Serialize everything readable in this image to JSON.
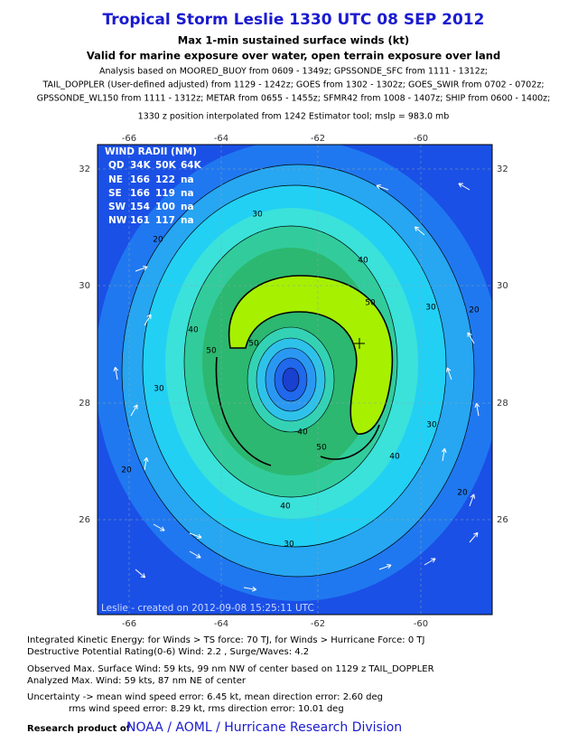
{
  "header": {
    "title": "Tropical Storm Leslie 1330 UTC 08 SEP 2012",
    "subtitle": "Max 1-min sustained surface winds (kt)",
    "subtitle2": "Valid for marine exposure over water, open terrain exposure over land",
    "analysis": [
      "Analysis based on MOORED_BUOY from 0609 - 1349z; GPSSONDE_SFC from 1111 - 1312z;",
      "TAIL_DOPPLER (User-defined adjusted) from 1129 - 1242z; GOES from 1302 - 1302z; GOES_SWIR from 0702 - 0702z;",
      "GPSSONDE_WL150 from 1111 - 1312z; METAR from 0655 - 1455z; SFMR42 from 1008 - 1407z; SHIP from 0600 - 1400z;"
    ],
    "position": "1330 z position interpolated from 1242 Estimator tool; mslp = 983.0 mb"
  },
  "axes": {
    "lon_labels": [
      "-66",
      "-64",
      "-62",
      "-60"
    ],
    "lat_labels": [
      "32",
      "30",
      "28",
      "26"
    ]
  },
  "wind_radii": {
    "title": "WIND RADII (NM)",
    "header": [
      "QD",
      "34K",
      "50K",
      "64K"
    ],
    "rows": [
      [
        "NE",
        "166",
        "122",
        "na"
      ],
      [
        "SE",
        "166",
        "119",
        "na"
      ],
      [
        "SW",
        "154",
        "100",
        "na"
      ],
      [
        "NW",
        "161",
        "117",
        "na"
      ]
    ]
  },
  "contour_labels": [
    "20",
    "30",
    "40",
    "50",
    "30",
    "20",
    "40",
    "50",
    "30",
    "20",
    "40",
    "30",
    "50",
    "40",
    "50",
    "40",
    "20",
    "30"
  ],
  "credit_line": "Leslie - created on 2012-09-08 15:25:11 UTC",
  "footer": {
    "lines": [
      "Integrated Kinetic Energy: for Winds > TS force: 70 TJ, for Winds > Hurricane Force: 0 TJ",
      "Destructive Potential Rating(0-6)  Wind: 2.2 , Surge/Waves: 4.2",
      "Observed Max. Surface Wind: 59 kts, 99 nm NW of center based on 1129 z TAIL_DOPPLER",
      "Analyzed Max. Wind: 59 kts, 87 nm  NE of center",
      "Uncertainty -> mean wind speed error: 6.45 kt, mean direction error: 2.60 deg",
      "rms wind speed error: 8.29 kt, rms direction error: 10.01 deg"
    ],
    "research": "Research product of",
    "org": "NOAA / AOML / Hurricane Research Division"
  }
}
